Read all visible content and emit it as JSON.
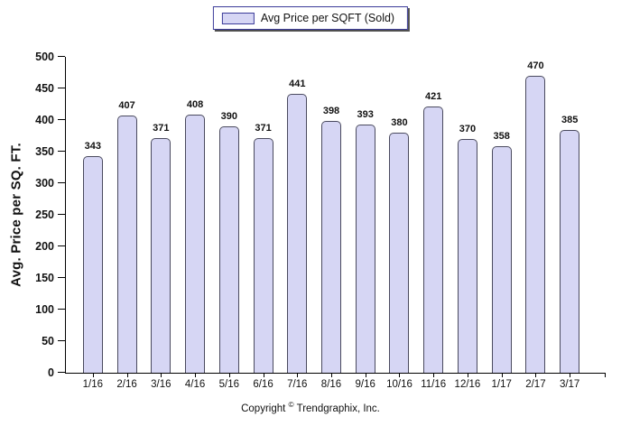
{
  "legend": {
    "label": "Avg Price per SQFT (Sold)"
  },
  "footer": {
    "copyright_pre": "Copyright ",
    "copyright_symbol": "©",
    "copyright_post": " Trendgraphix, Inc."
  },
  "chart_data": {
    "type": "bar",
    "title": "",
    "categories": [
      "1/16",
      "2/16",
      "3/16",
      "4/16",
      "5/16",
      "6/16",
      "7/16",
      "8/16",
      "9/16",
      "10/16",
      "11/16",
      "12/16",
      "1/17",
      "2/17",
      "3/17"
    ],
    "values": [
      343,
      407,
      371,
      408,
      390,
      371,
      441,
      398,
      393,
      380,
      421,
      370,
      358,
      470,
      385
    ],
    "series_name": "Avg Price per SQFT (Sold)",
    "xlabel": "",
    "ylabel": "Avg. Price per SQ. FT.",
    "ylim": [
      0,
      500
    ],
    "yticks": [
      0,
      50,
      100,
      150,
      200,
      250,
      300,
      350,
      400,
      450,
      500
    ],
    "grid": false,
    "legend_position": "top-center",
    "value_labels_shown": true,
    "colors": {
      "bar_fill": "#d6d6f4",
      "bar_border": "#4a4a5e",
      "legend_border": "#3b3b99",
      "axis": "#000000",
      "value_label": "#111111"
    }
  }
}
